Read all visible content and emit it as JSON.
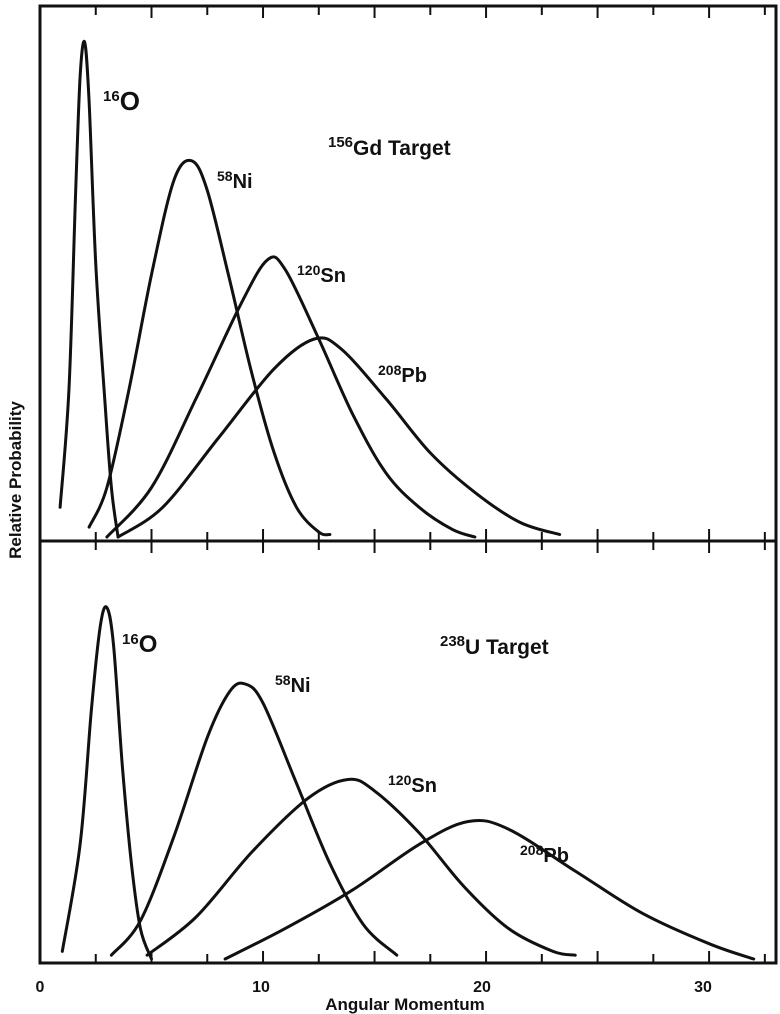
{
  "chart_data": [
    {
      "type": "line",
      "title": "156Gd Target",
      "title_parts": {
        "mass": "156",
        "element": "Gd Target"
      },
      "xlabel": "Angular Momentum",
      "ylabel": "Relative Probability",
      "xlim": [
        0,
        33
      ],
      "ylim": [
        0,
        1
      ],
      "grid": false,
      "x_ticks": [
        0,
        10,
        20,
        30
      ],
      "series": [
        {
          "name": "16O",
          "mass": "16",
          "element": "O",
          "values": [
            [
              0.9,
              0.06
            ],
            [
              1.3,
              0.3
            ],
            [
              1.6,
              0.7
            ],
            [
              1.8,
              0.93
            ],
            [
              2.0,
              1.0
            ],
            [
              2.2,
              0.88
            ],
            [
              2.5,
              0.55
            ],
            [
              2.9,
              0.28
            ],
            [
              3.2,
              0.1
            ],
            [
              3.5,
              0.0
            ]
          ]
        },
        {
          "name": "58Ni",
          "mass": "58",
          "element": "Ni",
          "values": [
            [
              2.2,
              0.02
            ],
            [
              3.0,
              0.1
            ],
            [
              4.0,
              0.3
            ],
            [
              5.0,
              0.53
            ],
            [
              6.0,
              0.72
            ],
            [
              6.8,
              0.76
            ],
            [
              7.5,
              0.7
            ],
            [
              8.5,
              0.52
            ],
            [
              9.5,
              0.33
            ],
            [
              10.5,
              0.17
            ],
            [
              11.5,
              0.06
            ],
            [
              12.5,
              0.01
            ],
            [
              13.0,
              0.005
            ]
          ]
        },
        {
          "name": "120Sn",
          "mass": "120",
          "element": "Sn",
          "values": [
            [
              3.0,
              0.0
            ],
            [
              5.0,
              0.1
            ],
            [
              7.0,
              0.28
            ],
            [
              9.0,
              0.47
            ],
            [
              10.2,
              0.56
            ],
            [
              11.0,
              0.54
            ],
            [
              12.5,
              0.4
            ],
            [
              14.0,
              0.25
            ],
            [
              15.5,
              0.13
            ],
            [
              17.0,
              0.06
            ],
            [
              18.5,
              0.015
            ],
            [
              19.5,
              0.0
            ]
          ]
        },
        {
          "name": "208Pb",
          "mass": "208",
          "element": "Pb",
          "values": [
            [
              3.5,
              0.0
            ],
            [
              5.5,
              0.06
            ],
            [
              8.0,
              0.2
            ],
            [
              10.5,
              0.34
            ],
            [
              12.3,
              0.4
            ],
            [
              13.5,
              0.38
            ],
            [
              15.5,
              0.28
            ],
            [
              17.5,
              0.17
            ],
            [
              19.5,
              0.09
            ],
            [
              21.5,
              0.03
            ],
            [
              23.3,
              0.005
            ]
          ]
        }
      ],
      "annotations": [
        "16O",
        "58Ni",
        "120Sn",
        "208Pb",
        "156Gd Target"
      ]
    },
    {
      "type": "line",
      "title": "238U Target",
      "title_parts": {
        "mass": "238",
        "element": "U Target"
      },
      "xlabel": "Angular Momentum",
      "ylabel": "Relative Probability",
      "xlim": [
        0,
        33
      ],
      "ylim": [
        0,
        1
      ],
      "grid": false,
      "x_ticks": [
        0,
        10,
        20,
        30
      ],
      "tick_labels": [
        "0",
        "10",
        "20",
        "30"
      ],
      "series": [
        {
          "name": "16O",
          "mass": "16",
          "element": "O",
          "values": [
            [
              1.0,
              0.02
            ],
            [
              1.8,
              0.3
            ],
            [
              2.3,
              0.65
            ],
            [
              2.7,
              0.87
            ],
            [
              3.0,
              0.92
            ],
            [
              3.3,
              0.82
            ],
            [
              3.7,
              0.5
            ],
            [
              4.1,
              0.25
            ],
            [
              4.5,
              0.08
            ],
            [
              5.0,
              0.0
            ]
          ]
        },
        {
          "name": "58Ni",
          "mass": "58",
          "element": "Ni",
          "values": [
            [
              3.2,
              0.01
            ],
            [
              4.5,
              0.1
            ],
            [
              6.0,
              0.32
            ],
            [
              7.5,
              0.58
            ],
            [
              8.5,
              0.7
            ],
            [
              9.2,
              0.72
            ],
            [
              10.0,
              0.67
            ],
            [
              11.5,
              0.46
            ],
            [
              13.0,
              0.25
            ],
            [
              14.5,
              0.09
            ],
            [
              16.0,
              0.01
            ]
          ]
        },
        {
          "name": "120Sn",
          "mass": "120",
          "element": "Sn",
          "values": [
            [
              4.8,
              0.01
            ],
            [
              7.0,
              0.11
            ],
            [
              9.5,
              0.28
            ],
            [
              12.0,
              0.42
            ],
            [
              13.8,
              0.47
            ],
            [
              15.0,
              0.44
            ],
            [
              17.0,
              0.33
            ],
            [
              19.0,
              0.19
            ],
            [
              21.0,
              0.08
            ],
            [
              23.0,
              0.02
            ],
            [
              24.0,
              0.01
            ]
          ]
        },
        {
          "name": "208Pb",
          "mass": "208",
          "element": "Pb",
          "values": [
            [
              8.3,
              0.0
            ],
            [
              11.0,
              0.08
            ],
            [
              14.0,
              0.18
            ],
            [
              17.0,
              0.3
            ],
            [
              19.2,
              0.36
            ],
            [
              21.0,
              0.34
            ],
            [
              24.0,
              0.23
            ],
            [
              27.0,
              0.12
            ],
            [
              30.0,
              0.04
            ],
            [
              32.0,
              0.0
            ]
          ]
        }
      ],
      "annotations": [
        "16O",
        "58Ni",
        "120Sn",
        "208Pb",
        "238U Target"
      ]
    }
  ]
}
